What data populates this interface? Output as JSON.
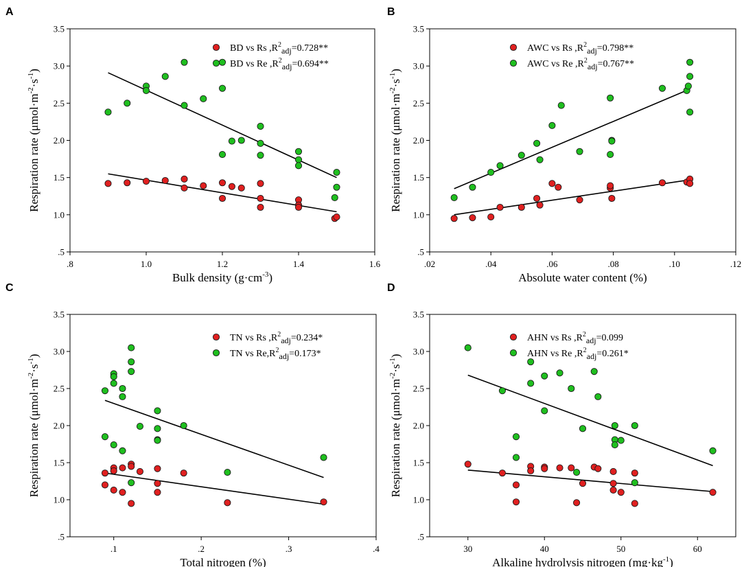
{
  "chart_data": [
    {
      "type": "scatter",
      "panel": "A",
      "xlabel": "Bulk density (g·cm",
      "xlabel_sup": "-3",
      "xlabel_end": ")",
      "ylabel": "Respiration rate (μmol·m",
      "ylabel_sup1": "-2",
      "ylabel_mid": "·s",
      "ylabel_sup2": "-1",
      "ylabel_end": ")",
      "xlim": [
        0.8,
        1.6
      ],
      "ylim": [
        0.5,
        3.5
      ],
      "xticks": [
        0.8,
        1.0,
        1.2,
        1.4,
        1.6
      ],
      "xtick_labels": [
        ".8",
        "1.0",
        "1.2",
        "1.4",
        "1.6"
      ],
      "yticks": [
        0.5,
        1.0,
        1.5,
        2.0,
        2.5,
        3.0,
        3.5
      ],
      "ytick_labels": [
        ".5",
        "1.0",
        "1.5",
        "2.0",
        "2.5",
        "3.0",
        "3.5"
      ],
      "legend_position": "top-right",
      "series": [
        {
          "name": "Rs",
          "color": "#e02020",
          "legend_prefix": "BD vs Rs ,R",
          "legend_sup": "2",
          "legend_sub": "adj",
          "legend_suffix": "=0.728**",
          "x": [
            0.9,
            0.95,
            1.0,
            1.05,
            1.1,
            1.1,
            1.15,
            1.2,
            1.2,
            1.225,
            1.25,
            1.3,
            1.3,
            1.3,
            1.4,
            1.4,
            1.4,
            1.495,
            1.5
          ],
          "y": [
            1.42,
            1.43,
            1.45,
            1.46,
            1.48,
            1.36,
            1.39,
            1.43,
            1.22,
            1.38,
            1.36,
            1.42,
            1.22,
            1.1,
            1.2,
            1.13,
            1.1,
            0.95,
            0.97
          ],
          "fit": [
            [
              0.9,
              1.55
            ],
            [
              1.5,
              1.04
            ]
          ]
        },
        {
          "name": "Re",
          "color": "#1fbf1f",
          "legend_prefix": "BD vs Re ,R",
          "legend_sup": "2",
          "legend_sub": "adj",
          "legend_suffix": "=0.694**",
          "x": [
            0.9,
            0.95,
            1.0,
            1.0,
            1.05,
            1.1,
            1.1,
            1.15,
            1.2,
            1.2,
            1.2,
            1.225,
            1.25,
            1.3,
            1.3,
            1.3,
            1.4,
            1.4,
            1.4,
            1.495,
            1.5,
            1.5
          ],
          "y": [
            2.38,
            2.5,
            2.73,
            2.67,
            2.86,
            3.05,
            2.47,
            2.56,
            3.05,
            2.7,
            1.81,
            1.99,
            2.0,
            2.19,
            1.96,
            1.8,
            1.85,
            1.74,
            1.66,
            1.23,
            1.57,
            1.37
          ],
          "fit": [
            [
              0.9,
              2.91
            ],
            [
              1.5,
              1.5
            ]
          ]
        }
      ]
    },
    {
      "type": "scatter",
      "panel": "B",
      "xlabel": "Absolute water content (%)",
      "xlabel_sup": "",
      "xlabel_end": "",
      "ylabel": "Respiration rate (μmol·m",
      "ylabel_sup1": "-2",
      "ylabel_mid": "·s",
      "ylabel_sup2": "-1",
      "ylabel_end": ")",
      "xlim": [
        0.02,
        0.12
      ],
      "ylim": [
        0.5,
        3.5
      ],
      "xticks": [
        0.02,
        0.04,
        0.06,
        0.08,
        0.1,
        0.12
      ],
      "xtick_labels": [
        ".02",
        ".04",
        ".06",
        ".08",
        ".10",
        ".12"
      ],
      "yticks": [
        0.5,
        1.0,
        1.5,
        2.0,
        2.5,
        3.0,
        3.5
      ],
      "ytick_labels": [
        ".5",
        "1.0",
        "1.5",
        "2.0",
        "2.5",
        "3.0",
        "3.5"
      ],
      "legend_position": "top-right",
      "series": [
        {
          "name": "Rs",
          "color": "#e02020",
          "legend_prefix": "AWC vs Rs ,R",
          "legend_sup": "2",
          "legend_sub": "adj",
          "legend_suffix": "=0.798**",
          "x": [
            0.028,
            0.034,
            0.04,
            0.043,
            0.05,
            0.055,
            0.056,
            0.06,
            0.062,
            0.069,
            0.079,
            0.079,
            0.0795,
            0.096,
            0.104,
            0.105,
            0.105
          ],
          "y": [
            0.95,
            0.96,
            0.97,
            1.1,
            1.1,
            1.22,
            1.13,
            1.42,
            1.37,
            1.2,
            1.36,
            1.39,
            1.22,
            1.43,
            1.44,
            1.48,
            1.42
          ],
          "fit": [
            [
              0.028,
              1.0
            ],
            [
              0.105,
              1.47
            ]
          ]
        },
        {
          "name": "Re",
          "color": "#1fbf1f",
          "legend_prefix": "AWC vs Re ,R",
          "legend_sup": "2",
          "legend_sub": "adj",
          "legend_suffix": "=0.767**",
          "x": [
            0.028,
            0.034,
            0.04,
            0.043,
            0.05,
            0.055,
            0.056,
            0.06,
            0.063,
            0.069,
            0.079,
            0.0795,
            0.0795,
            0.079,
            0.096,
            0.104,
            0.1045,
            0.105,
            0.105,
            0.105
          ],
          "y": [
            1.23,
            1.37,
            1.57,
            1.66,
            1.8,
            1.96,
            1.74,
            2.2,
            2.47,
            1.85,
            2.57,
            2.0,
            1.99,
            1.81,
            2.7,
            2.67,
            2.73,
            2.86,
            3.05,
            2.38
          ],
          "fit": [
            [
              0.028,
              1.35
            ],
            [
              0.105,
              2.69
            ]
          ]
        }
      ]
    },
    {
      "type": "scatter",
      "panel": "C",
      "xlabel": "Total nitrogen (%)",
      "xlabel_sup": "",
      "xlabel_end": "",
      "ylabel": "Respiration rate (μmol·m",
      "ylabel_sup1": "-2",
      "ylabel_mid": "·s",
      "ylabel_sup2": "-1",
      "ylabel_end": ")",
      "xlim": [
        0.05,
        0.4
      ],
      "ylim": [
        0.5,
        3.5
      ],
      "xticks": [
        0.1,
        0.2,
        0.3,
        0.4
      ],
      "xtick_labels": [
        ".1",
        ".2",
        ".3",
        ".4"
      ],
      "yticks": [
        0.5,
        1.0,
        1.5,
        2.0,
        2.5,
        3.0,
        3.5
      ],
      "ytick_labels": [
        ".5",
        "1.0",
        "1.5",
        "2.0",
        "2.5",
        "3.0",
        "3.5"
      ],
      "legend_position": "top-right",
      "series": [
        {
          "name": "Rs",
          "color": "#e02020",
          "legend_prefix": "TN vs Rs ,R",
          "legend_sup": "2",
          "legend_sub": "adj",
          "legend_suffix": "=0.234*",
          "x": [
            0.09,
            0.09,
            0.1,
            0.1,
            0.1,
            0.11,
            0.11,
            0.12,
            0.12,
            0.12,
            0.13,
            0.15,
            0.15,
            0.15,
            0.18,
            0.23,
            0.34
          ],
          "y": [
            1.36,
            1.2,
            1.43,
            1.39,
            1.13,
            1.43,
            1.1,
            1.48,
            1.45,
            0.95,
            1.38,
            1.42,
            1.22,
            1.1,
            1.36,
            0.96,
            0.97
          ],
          "fit": [
            [
              0.09,
              1.36
            ],
            [
              0.34,
              0.94
            ]
          ]
        },
        {
          "name": "Re",
          "color": "#1fbf1f",
          "legend_prefix": "TN vs Re,R",
          "legend_sup": "2",
          "legend_sub": "adj",
          "legend_suffix": "=0.173*",
          "x": [
            0.09,
            0.09,
            0.1,
            0.1,
            0.1,
            0.1,
            0.11,
            0.11,
            0.11,
            0.12,
            0.12,
            0.12,
            0.12,
            0.13,
            0.15,
            0.15,
            0.15,
            0.15,
            0.18,
            0.23,
            0.34
          ],
          "y": [
            2.47,
            1.85,
            2.7,
            2.66,
            2.57,
            1.74,
            2.5,
            2.39,
            1.66,
            3.05,
            2.86,
            2.73,
            1.23,
            1.99,
            2.2,
            1.96,
            1.81,
            1.8,
            2.0,
            1.37,
            1.57
          ],
          "fit": [
            [
              0.09,
              2.34
            ],
            [
              0.34,
              1.3
            ]
          ]
        }
      ]
    },
    {
      "type": "scatter",
      "panel": "D",
      "xlabel": "Alkaline hydrolysis nitrogen (mg·kg",
      "xlabel_sup": "-1",
      "xlabel_end": ")",
      "ylabel": "Respiration rate (μmol·m",
      "ylabel_sup1": "-2",
      "ylabel_mid": "·s",
      "ylabel_sup2": "-1",
      "ylabel_end": ")",
      "xlim": [
        25,
        65
      ],
      "ylim": [
        0.5,
        3.5
      ],
      "xticks": [
        30,
        40,
        50,
        60
      ],
      "xtick_labels": [
        "30",
        "40",
        "50",
        "60"
      ],
      "yticks": [
        0.5,
        1.0,
        1.5,
        2.0,
        2.5,
        3.0,
        3.5
      ],
      "ytick_labels": [
        ".5",
        "1.0",
        "1.5",
        "2.0",
        "2.5",
        "3.0",
        "3.5"
      ],
      "legend_position": "top-right",
      "series": [
        {
          "name": "Rs",
          "color": "#e02020",
          "legend_prefix": "AHN vs Rs ,R",
          "legend_sup": "2",
          "legend_sub": "adj",
          "legend_suffix": "=0.099",
          "x": [
            30,
            34.5,
            36.3,
            36.3,
            38.2,
            38.2,
            40,
            40,
            42,
            43.5,
            44.2,
            45,
            46.5,
            47,
            49,
            49,
            49,
            50,
            51.8,
            51.8,
            62
          ],
          "y": [
            1.48,
            1.36,
            1.2,
            0.97,
            1.45,
            1.39,
            1.44,
            1.42,
            1.43,
            1.43,
            0.96,
            1.22,
            1.44,
            1.42,
            1.38,
            1.22,
            1.13,
            1.1,
            1.36,
            0.95,
            1.1
          ],
          "fit": [
            [
              30,
              1.4
            ],
            [
              62,
              1.11
            ]
          ]
        },
        {
          "name": "Re",
          "color": "#1fbf1f",
          "legend_prefix": "AHN vs Re ,R",
          "legend_sup": "2",
          "legend_sub": "adj",
          "legend_suffix": "=0.261*",
          "x": [
            30,
            34.5,
            36.3,
            36.3,
            38.2,
            38.2,
            40,
            40,
            42,
            43.5,
            44.2,
            45,
            46.5,
            47,
            49.2,
            49.2,
            49.2,
            50,
            51.8,
            51.8,
            62
          ],
          "y": [
            3.05,
            2.47,
            1.85,
            1.57,
            2.86,
            2.57,
            2.67,
            2.2,
            2.71,
            2.5,
            1.37,
            1.96,
            2.73,
            2.39,
            2.0,
            1.81,
            1.74,
            1.8,
            2.0,
            1.23,
            1.66
          ],
          "fit": [
            [
              30,
              2.68
            ],
            [
              62,
              1.46
            ]
          ]
        }
      ]
    }
  ]
}
